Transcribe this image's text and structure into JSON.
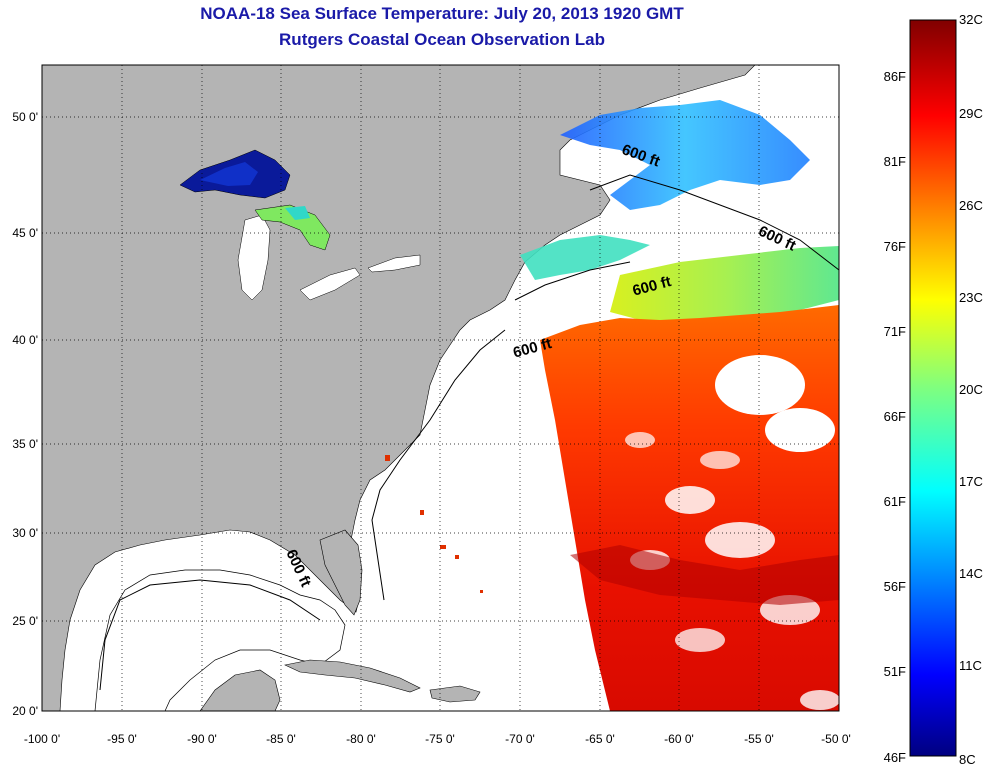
{
  "header": {
    "title": "NOAA-18 Sea Surface Temperature:  July 20, 2013 1920 GMT",
    "subtitle": "Rutgers Coastal Ocean Observation Lab"
  },
  "map": {
    "lon_range": [
      -100,
      -50
    ],
    "lat_range": [
      20,
      52.5
    ],
    "x_ticks": [
      "-100 0'",
      "-95 0'",
      "-90 0'",
      "-85 0'",
      "-80 0'",
      "-75 0'",
      "-70 0'",
      "-65 0'",
      "-60 0'",
      "-55 0'",
      "-50 0'"
    ],
    "y_ticks": [
      "20 0'",
      "25 0'",
      "30 0'",
      "35 0'",
      "40 0'",
      "45 0'",
      "50 0'"
    ],
    "grid": "dotted",
    "land_color": "#b4b4b4",
    "no_data_color": "#ffffff",
    "isobath_labels": [
      "600 ft",
      "600 ft",
      "600 ft",
      "600 ft",
      "600 ft"
    ]
  },
  "colorbar": {
    "celsius_range": [
      8,
      32
    ],
    "celsius_labels": [
      "32C",
      "29C",
      "26C",
      "23C",
      "20C",
      "17C",
      "14C",
      "11C",
      "8C"
    ],
    "fahrenheit_labels": [
      "86F",
      "81F",
      "76F",
      "71F",
      "66F",
      "61F",
      "56F",
      "51F",
      "46F"
    ],
    "colormap": "jet"
  }
}
